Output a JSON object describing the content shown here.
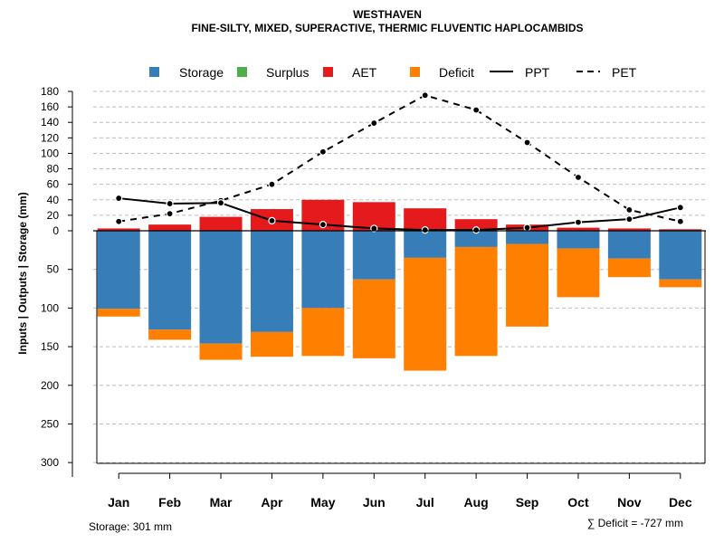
{
  "chart_data": {
    "type": "bar",
    "title": "WESTHAVEN",
    "subtitle": "FINE-SILTY, MIXED, SUPERACTIVE, THERMIC FLUVENTIC HAPLOCAMBIDS",
    "ylabel": "Inputs | Outputs | Storage    (mm)",
    "categories": [
      "Jan",
      "Feb",
      "Mar",
      "Apr",
      "May",
      "Jun",
      "Jul",
      "Aug",
      "Sep",
      "Oct",
      "Nov",
      "Dec"
    ],
    "upper_ticks": [
      "180",
      "160",
      "140",
      "120",
      "100",
      "80",
      "60",
      "40",
      "20",
      "0"
    ],
    "lower_ticks": [
      "50",
      "100",
      "150",
      "200",
      "250",
      "300"
    ],
    "ylim_upper": [
      0,
      180
    ],
    "ylim_lower": [
      0,
      301
    ],
    "legend": [
      {
        "key": "storage",
        "label": "Storage",
        "color": "#377EB8",
        "kind": "box"
      },
      {
        "key": "surplus",
        "label": "Surplus",
        "color": "#4DAF4A",
        "kind": "box"
      },
      {
        "key": "aet",
        "label": "AET",
        "color": "#E41A1C",
        "kind": "box"
      },
      {
        "key": "deficit",
        "label": "Deficit",
        "color": "#FF7F00",
        "kind": "box"
      },
      {
        "key": "ppt",
        "label": "PPT",
        "color": "#000000",
        "kind": "solid"
      },
      {
        "key": "pet",
        "label": "PET",
        "color": "#000000",
        "kind": "dashed"
      }
    ],
    "series": [
      {
        "name": "AET",
        "values": [
          3,
          8,
          18,
          28,
          40,
          37,
          29,
          15,
          8,
          4,
          3,
          2
        ]
      },
      {
        "name": "Surplus",
        "values": [
          0,
          0,
          0,
          0,
          0,
          0,
          0,
          0,
          0,
          0,
          0,
          0
        ]
      },
      {
        "name": "Storage",
        "values": [
          101,
          128,
          146,
          131,
          100,
          63,
          35,
          21,
          17,
          23,
          36,
          63
        ]
      },
      {
        "name": "Deficit",
        "values": [
          10,
          13,
          21,
          32,
          62,
          102,
          146,
          141,
          107,
          63,
          24,
          10
        ]
      },
      {
        "name": "PPT",
        "values": [
          42,
          35,
          36,
          13,
          8,
          3,
          1,
          1,
          4,
          11,
          15,
          30
        ]
      },
      {
        "name": "PET",
        "values": [
          12,
          22,
          39,
          60,
          102,
          139,
          175,
          156,
          114,
          69,
          27,
          12
        ]
      }
    ]
  },
  "footer": {
    "storage": "Storage: 301 mm",
    "deficit": "∑ Deficit = -727 mm"
  }
}
